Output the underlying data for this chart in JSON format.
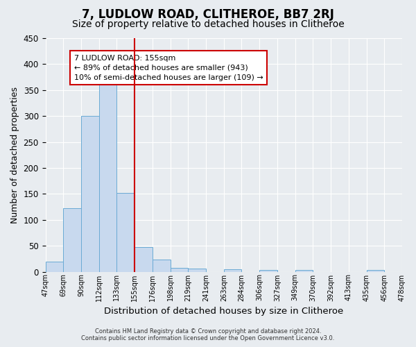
{
  "title": "7, LUDLOW ROAD, CLITHEROE, BB7 2RJ",
  "subtitle": "Size of property relative to detached houses in Clitheroe",
  "xlabel": "Distribution of detached houses by size in Clitheroe",
  "ylabel": "Number of detached properties",
  "footer_line1": "Contains HM Land Registry data © Crown copyright and database right 2024.",
  "footer_line2": "Contains public sector information licensed under the Open Government Licence v3.0.",
  "bin_labels": [
    "47sqm",
    "69sqm",
    "90sqm",
    "112sqm",
    "133sqm",
    "155sqm",
    "176sqm",
    "198sqm",
    "219sqm",
    "241sqm",
    "263sqm",
    "284sqm",
    "306sqm",
    "327sqm",
    "349sqm",
    "370sqm",
    "392sqm",
    "413sqm",
    "435sqm",
    "456sqm",
    "478sqm"
  ],
  "bar_values": [
    20,
    123,
    300,
    360,
    152,
    47,
    23,
    8,
    6,
    0,
    5,
    0,
    4,
    0,
    3,
    0,
    0,
    0,
    3,
    0
  ],
  "bar_color": "#c8d9ee",
  "bar_edgecolor": "#6aaad4",
  "vline_color": "#cc0000",
  "vline_position": 5,
  "annotation_text_line1": "7 LUDLOW ROAD: 155sqm",
  "annotation_text_line2": "← 89% of detached houses are smaller (943)",
  "annotation_text_line3": "10% of semi-detached houses are larger (109) →",
  "annotation_box_edgecolor": "#cc0000",
  "annotation_box_facecolor": "#ffffff",
  "ylim": [
    0,
    450
  ],
  "yticks": [
    0,
    50,
    100,
    150,
    200,
    250,
    300,
    350,
    400,
    450
  ],
  "fig_background_color": "#e8ecf0",
  "plot_background_color": "#e8ecf0",
  "grid_color": "#ffffff",
  "title_fontsize": 12,
  "subtitle_fontsize": 10,
  "title_fontweight": "bold"
}
